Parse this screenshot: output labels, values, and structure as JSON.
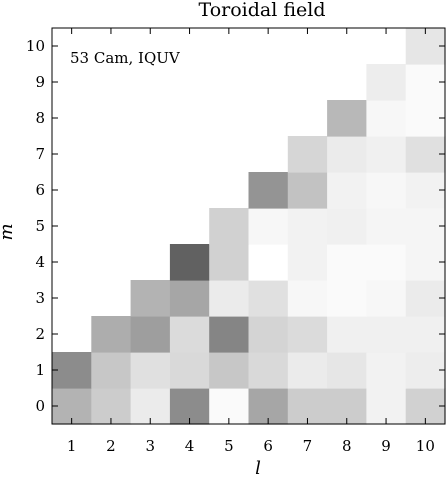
{
  "chart_data": {
    "type": "heatmap",
    "title": "Toroidal field",
    "annotation": "53 Cam, IQUV",
    "xlabel": "l",
    "ylabel": "m",
    "x_ticks": [
      1,
      2,
      3,
      4,
      5,
      6,
      7,
      8,
      9,
      10
    ],
    "y_ticks": [
      0,
      1,
      2,
      3,
      4,
      5,
      6,
      7,
      8,
      9,
      10
    ],
    "colorscale": "grayscale (darker = larger value)",
    "value_range": [
      0,
      1
    ],
    "grid_cells_note": "values[m][l-1]; null where m > l (no coefficient)",
    "values": [
      [
        0.3,
        0.2,
        0.08,
        0.45,
        0.02,
        0.35,
        0.2,
        0.2,
        0.05,
        0.18
      ],
      [
        0.45,
        0.22,
        0.12,
        0.15,
        0.22,
        0.15,
        0.08,
        0.1,
        0.05,
        0.07
      ],
      [
        null,
        0.32,
        0.38,
        0.14,
        0.48,
        0.17,
        0.14,
        0.06,
        0.06,
        0.06
      ],
      [
        null,
        null,
        0.3,
        0.35,
        0.08,
        0.12,
        0.03,
        0.02,
        0.03,
        0.08
      ],
      [
        null,
        null,
        null,
        0.62,
        0.18,
        0.0,
        0.05,
        0.02,
        0.02,
        0.04
      ],
      [
        null,
        null,
        null,
        null,
        0.18,
        0.03,
        0.05,
        0.06,
        0.04,
        0.04
      ],
      [
        null,
        null,
        null,
        null,
        null,
        0.42,
        0.24,
        0.05,
        0.03,
        0.05
      ],
      [
        null,
        null,
        null,
        null,
        null,
        null,
        0.16,
        0.08,
        0.06,
        0.12
      ],
      [
        null,
        null,
        null,
        null,
        null,
        null,
        null,
        0.28,
        0.03,
        0.02
      ],
      [
        null,
        null,
        null,
        null,
        null,
        null,
        null,
        null,
        0.07,
        0.02
      ],
      [
        null,
        null,
        null,
        null,
        null,
        null,
        null,
        null,
        null,
        0.1
      ]
    ]
  }
}
